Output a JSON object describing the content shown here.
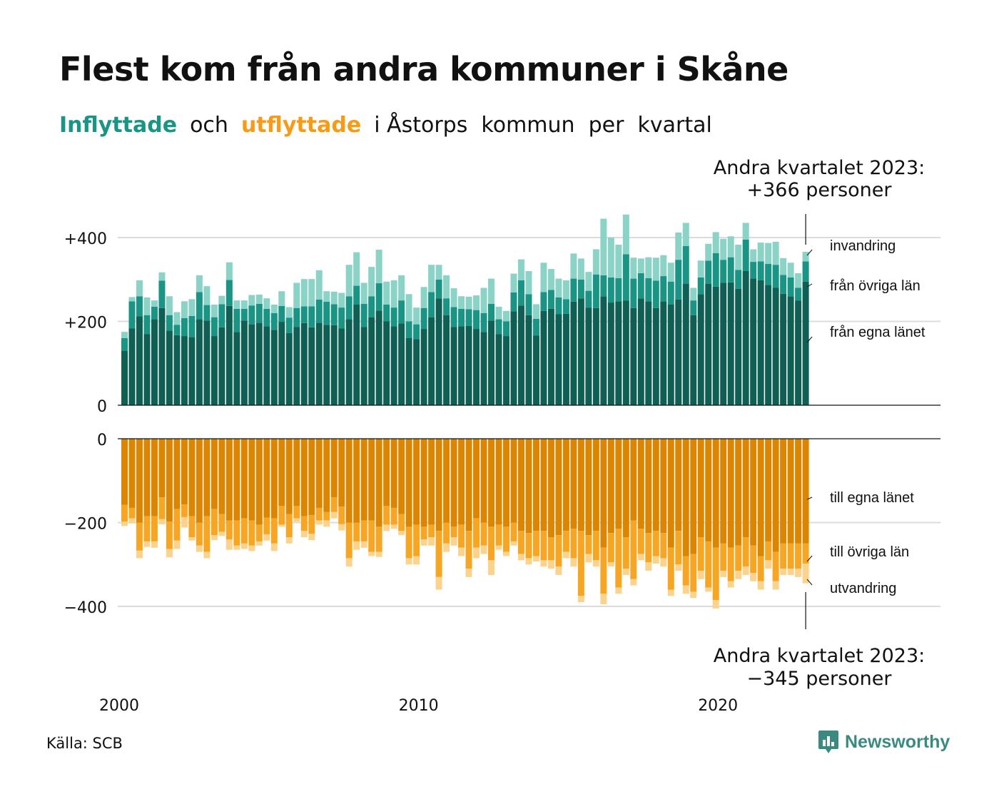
{
  "title": "Flest kom från andra kommuner i Skåne",
  "subtitle": {
    "in_word": "Inflyttade",
    "and_word": "och",
    "out_word": "utflyttade",
    "rest": "i Åstorps  kommun  per  kvartal"
  },
  "source": "Källa: SCB",
  "logo_text": "Newsworthy",
  "colors": {
    "in_own_county": "#0f5f55",
    "in_other_counties": "#1a9484",
    "in_immigration": "#8bd3c7",
    "out_own_county": "#dc8500",
    "out_other_counties": "#f6a623",
    "out_emigration": "#fad48f"
  },
  "chart_data": {
    "type": "bar",
    "stacked": true,
    "x_start": "2000 Q1",
    "x_end": "2023 Q2",
    "x_ticks": [
      "2000",
      "2010",
      "2020"
    ],
    "top_panel": {
      "y_ticks": [
        "+400",
        "+200",
        "0"
      ],
      "ylim": [
        0,
        460
      ],
      "series_labels": [
        "från egna länet",
        "från övriga län",
        "invandring"
      ],
      "annotation": [
        "Andra kvartalet 2023:",
        "+366 personer"
      ]
    },
    "bottom_panel": {
      "y_ticks": [
        "0",
        "−200",
        "−400"
      ],
      "ylim": [
        -460,
        0
      ],
      "series_labels": [
        "till egna länet",
        "till övriga län",
        "utvandring"
      ],
      "annotation": [
        "Andra kvartalet 2023:",
        "−345 personer"
      ]
    },
    "in_own": [
      130,
      183,
      212,
      170,
      205,
      232,
      178,
      167,
      165,
      163,
      205,
      202,
      165,
      186,
      237,
      175,
      202,
      193,
      197,
      188,
      180,
      199,
      172,
      187,
      196,
      186,
      197,
      192,
      191,
      183,
      205,
      240,
      187,
      210,
      226,
      200,
      188,
      195,
      160,
      158,
      182,
      210,
      255,
      215,
      187,
      188,
      189,
      182,
      175,
      202,
      170,
      165,
      224,
      238,
      215,
      166,
      225,
      230,
      217,
      218,
      247,
      255,
      233,
      232,
      260,
      245,
      248,
      250,
      232,
      255,
      248,
      232,
      248,
      240,
      252,
      290,
      215,
      265,
      290,
      283,
      292,
      293,
      278,
      320,
      302,
      298,
      287,
      280,
      266,
      260,
      250,
      295
    ],
    "in_other": [
      30,
      65,
      48,
      45,
      30,
      65,
      37,
      25,
      43,
      50,
      65,
      37,
      45,
      55,
      62,
      55,
      28,
      45,
      45,
      42,
      40,
      38,
      37,
      45,
      40,
      50,
      55,
      55,
      50,
      50,
      55,
      45,
      55,
      50,
      65,
      40,
      45,
      55,
      40,
      35,
      50,
      60,
      45,
      40,
      47,
      42,
      40,
      45,
      45,
      40,
      35,
      35,
      45,
      60,
      50,
      40,
      45,
      45,
      40,
      35,
      55,
      45,
      40,
      80,
      50,
      60,
      55,
      110,
      70,
      60,
      55,
      65,
      60,
      55,
      95,
      90,
      35,
      40,
      55,
      80,
      55,
      60,
      45,
      75,
      40,
      45,
      50,
      55,
      45,
      45,
      30,
      48
    ],
    "in_imm": [
      15,
      10,
      38,
      42,
      15,
      20,
      45,
      30,
      40,
      40,
      40,
      45,
      30,
      20,
      42,
      20,
      20,
      25,
      22,
      25,
      20,
      35,
      25,
      60,
      65,
      65,
      70,
      25,
      30,
      35,
      75,
      80,
      50,
      70,
      80,
      55,
      65,
      60,
      65,
      40,
      50,
      65,
      35,
      55,
      45,
      30,
      30,
      35,
      60,
      60,
      30,
      25,
      45,
      50,
      55,
      35,
      70,
      50,
      45,
      45,
      60,
      50,
      45,
      60,
      135,
      95,
      80,
      95,
      50,
      35,
      50,
      55,
      50,
      45,
      65,
      55,
      30,
      40,
      40,
      50,
      50,
      50,
      60,
      40,
      30,
      45,
      50,
      55,
      40,
      35,
      35,
      23
    ],
    "out_own": [
      158,
      165,
      200,
      185,
      185,
      140,
      198,
      168,
      157,
      185,
      200,
      185,
      168,
      180,
      195,
      195,
      190,
      195,
      205,
      188,
      190,
      160,
      180,
      160,
      185,
      182,
      165,
      175,
      140,
      162,
      200,
      200,
      195,
      195,
      210,
      160,
      165,
      180,
      210,
      205,
      210,
      205,
      220,
      200,
      210,
      205,
      220,
      190,
      200,
      210,
      205,
      210,
      200,
      220,
      225,
      220,
      220,
      235,
      230,
      220,
      215,
      220,
      230,
      220,
      260,
      225,
      215,
      235,
      195,
      215,
      225,
      220,
      225,
      260,
      220,
      280,
      275,
      235,
      245,
      260,
      250,
      260,
      255,
      235,
      255,
      280,
      245,
      270,
      250,
      250,
      250,
      250
    ],
    "out_other": [
      40,
      25,
      67,
      60,
      60,
      52,
      65,
      75,
      30,
      50,
      55,
      85,
      62,
      42,
      45,
      60,
      60,
      60,
      40,
      40,
      60,
      45,
      55,
      30,
      35,
      45,
      30,
      20,
      35,
      42,
      85,
      45,
      50,
      75,
      60,
      45,
      40,
      40,
      75,
      75,
      30,
      30,
      110,
      50,
      25,
      55,
      90,
      70,
      55,
      80,
      50,
      60,
      45,
      55,
      60,
      60,
      70,
      55,
      75,
      50,
      70,
      155,
      45,
      70,
      110,
      70,
      140,
      75,
      140,
      60,
      70,
      60,
      60,
      100,
      80,
      70,
      90,
      80,
      110,
      125,
      65,
      80,
      60,
      70,
      65,
      60,
      45,
      70,
      60,
      60,
      60,
      48
    ],
    "out_emig": [
      10,
      12,
      18,
      13,
      15,
      12,
      20,
      20,
      25,
      8,
      15,
      15,
      12,
      10,
      25,
      10,
      13,
      13,
      10,
      15,
      18,
      5,
      15,
      8,
      15,
      15,
      10,
      15,
      15,
      15,
      20,
      20,
      15,
      10,
      12,
      15,
      10,
      10,
      15,
      20,
      15,
      20,
      30,
      20,
      20,
      20,
      20,
      25,
      20,
      35,
      10,
      10,
      10,
      15,
      15,
      13,
      15,
      20,
      20,
      15,
      20,
      15,
      20,
      15,
      25,
      10,
      15,
      15,
      15,
      15,
      20,
      18,
      20,
      15,
      15,
      20,
      15,
      20,
      10,
      20,
      15,
      15,
      20,
      20,
      20,
      20,
      20,
      20,
      15,
      15,
      20,
      47
    ]
  }
}
